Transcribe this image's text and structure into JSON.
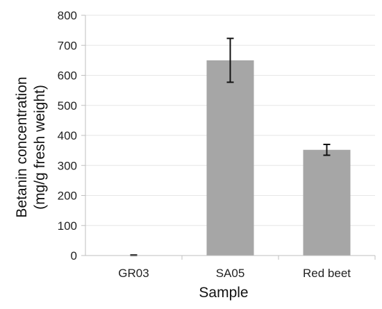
{
  "chart_data": {
    "type": "bar",
    "categories": [
      "GR03",
      "SA05",
      "Red beet"
    ],
    "values": [
      1,
      650,
      352
    ],
    "error": [
      1,
      73,
      18
    ],
    "xlabel": "Sample",
    "ylabel": "Betanin concentration",
    "ylabel_line2": "(mg/g fresh weight)",
    "ylim": [
      0,
      800
    ],
    "yticks": [
      0,
      100,
      200,
      300,
      400,
      500,
      600,
      700,
      800
    ],
    "grid": true,
    "colors": {
      "bar": "#a6a6a6",
      "grid": "#e6e6e6",
      "axis": "#bfbfbf",
      "error": "#111111"
    }
  }
}
